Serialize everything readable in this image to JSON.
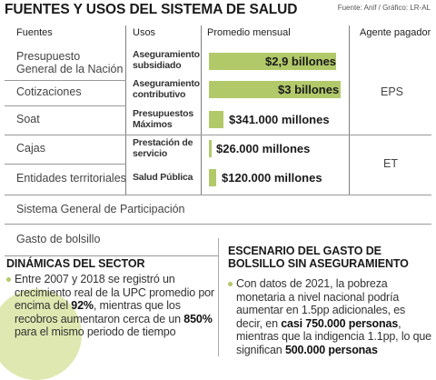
{
  "title": "FUENTES Y USOS DEL SISTEMA DE SALUD",
  "source": "Fuente: Anif / Gráfico: LR-AL",
  "headers": {
    "fuentes": "Fuentes",
    "usos": "Usos",
    "promedio": "Promedio mensual",
    "agente": "Agente pagador"
  },
  "rows": [
    {
      "fuente": [
        "Presupuesto",
        "General de la Nación"
      ],
      "uso": [
        "Aseguramiento",
        "subsidiado"
      ],
      "valor": "$2,9 billones",
      "amount_millones": 2900000
    },
    {
      "fuente": [
        "Cotizaciones"
      ],
      "uso": [
        "Aseguramiento",
        "contributivo"
      ],
      "valor": "$3 billones",
      "amount_millones": 3000000
    },
    {
      "fuente": [
        "Soat"
      ],
      "uso": [
        "Presupuestos",
        "Máximos"
      ],
      "valor": "$341.000 millones",
      "amount_millones": 341000
    },
    {
      "fuente": [
        "Cajas"
      ],
      "uso": [
        "Prestación de",
        "servicio"
      ],
      "valor": "$26.000 millones",
      "amount_millones": 26000
    },
    {
      "fuente": [
        "Entidades territoriales"
      ],
      "uso": [
        "Salud Pública"
      ],
      "valor": "$120.000 millones",
      "amount_millones": 120000
    }
  ],
  "agents": {
    "group1": "EPS",
    "group2": "ET"
  },
  "extra_rows": [
    "Sistema General de Participación",
    "Gasto de bolsillo"
  ],
  "dinamicas": {
    "title": "DINÁMICAS DEL SECTOR",
    "text_parts": [
      "Entre 2007 y 2018 se registró un crecimiento real de la UPC promedio por encima del ",
      "92%",
      ", mientras que los recobros aumentaron cerca de un ",
      "850%",
      " para el mismo periodo de tiempo"
    ]
  },
  "escenario": {
    "title": [
      "ESCENARIO DEL GASTO DE",
      "BOLSILLO SIN ASEGURAMIENTO"
    ],
    "text_parts": [
      "Con datos de 2021, la pobreza monetaria a nivel nacional podría aumentar en 1.5pp adicionales, es decir, en ",
      "casi 750.000 personas",
      ", mientras que la indigencia 1.1pp, lo que significan ",
      "500.000 personas"
    ]
  },
  "colors": {
    "accent": "#b2c96a",
    "circle": "#dfe8b0"
  }
}
